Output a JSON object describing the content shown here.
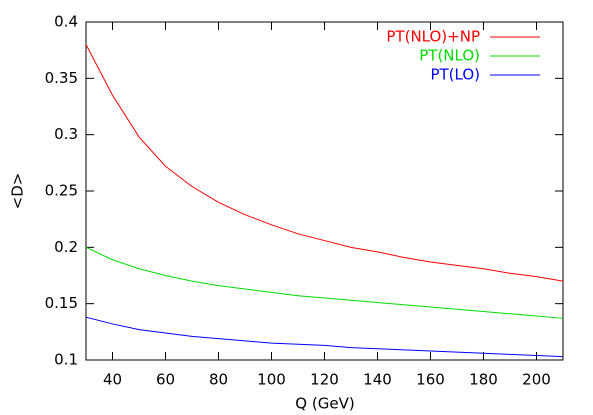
{
  "chart_data": {
    "type": "line",
    "x_label": "Q (GeV)",
    "y_label": "<D>",
    "x": [
      30,
      40,
      50,
      60,
      70,
      80,
      90,
      100,
      110,
      120,
      130,
      140,
      150,
      160,
      170,
      180,
      190,
      200,
      210
    ],
    "series": [
      {
        "name": "PT(NLO)+NP",
        "color": "#ff0000",
        "values": [
          0.38,
          0.335,
          0.298,
          0.272,
          0.254,
          0.24,
          0.229,
          0.22,
          0.212,
          0.206,
          0.2,
          0.196,
          0.191,
          0.187,
          0.184,
          0.181,
          0.177,
          0.174,
          0.17
        ]
      },
      {
        "name": "PT(NLO)",
        "color": "#00dd00",
        "values": [
          0.2,
          0.189,
          0.181,
          0.175,
          0.17,
          0.166,
          0.163,
          0.16,
          0.157,
          0.155,
          0.153,
          0.151,
          0.149,
          0.147,
          0.145,
          0.143,
          0.141,
          0.139,
          0.137
        ]
      },
      {
        "name": "PT(LO)",
        "color": "#0000ff",
        "values": [
          0.138,
          0.132,
          0.127,
          0.124,
          0.121,
          0.119,
          0.117,
          0.115,
          0.114,
          0.113,
          0.111,
          0.11,
          0.109,
          0.108,
          0.107,
          0.106,
          0.105,
          0.104,
          0.103
        ]
      }
    ],
    "xlim": [
      30,
      210
    ],
    "xticks": [
      40,
      60,
      80,
      100,
      120,
      140,
      160,
      180,
      200
    ],
    "ylim": [
      0.1,
      0.4
    ],
    "yticks": [
      0.1,
      0.15,
      0.2,
      0.25,
      0.3,
      0.35,
      0.4
    ],
    "legend": "top-right"
  }
}
